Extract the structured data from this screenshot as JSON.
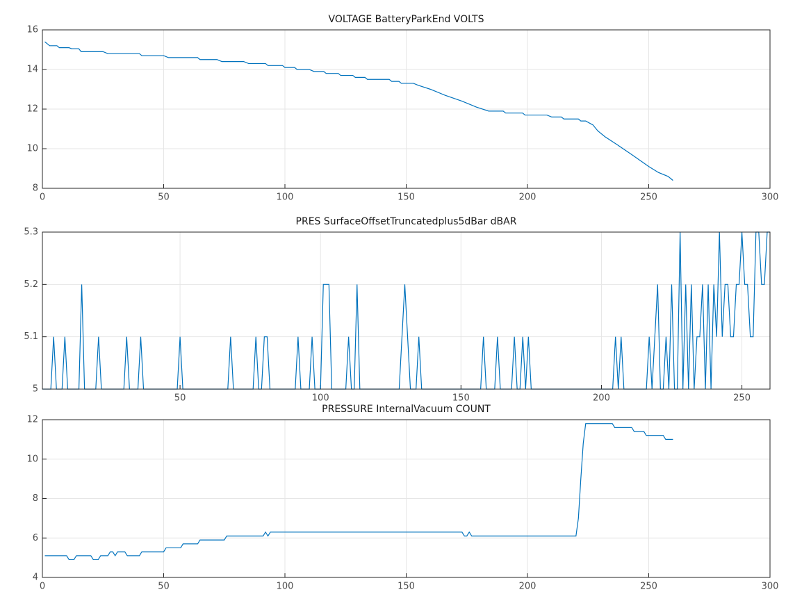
{
  "chart_data": [
    {
      "type": "line",
      "title": "VOLTAGE BatteryParkEnd VOLTS",
      "color": "#0072bd",
      "grid": true,
      "x": [
        1,
        2,
        3,
        6,
        7,
        11,
        12,
        15,
        16,
        25,
        27,
        40,
        41,
        50,
        52,
        64,
        65,
        72,
        74,
        83,
        85,
        92,
        93,
        99,
        100,
        104,
        105,
        110,
        112,
        116,
        117,
        122,
        123,
        128,
        129,
        133,
        134,
        143,
        144,
        147,
        148,
        153,
        155,
        160,
        166,
        173,
        179,
        184,
        190,
        191,
        198,
        199,
        208,
        210,
        214,
        215,
        221,
        222,
        224,
        227,
        229,
        232,
        237,
        243,
        250,
        254,
        258,
        260
      ],
      "values": [
        15.4,
        15.3,
        15.2,
        15.2,
        15.1,
        15.1,
        15.05,
        15.05,
        14.9,
        14.9,
        14.8,
        14.8,
        14.7,
        14.7,
        14.6,
        14.6,
        14.5,
        14.5,
        14.4,
        14.4,
        14.3,
        14.3,
        14.2,
        14.2,
        14.1,
        14.1,
        14.0,
        14.0,
        13.9,
        13.9,
        13.8,
        13.8,
        13.7,
        13.7,
        13.6,
        13.6,
        13.5,
        13.5,
        13.4,
        13.4,
        13.3,
        13.3,
        13.2,
        13.0,
        12.7,
        12.4,
        12.1,
        11.9,
        11.9,
        11.8,
        11.8,
        11.7,
        11.7,
        11.6,
        11.6,
        11.5,
        11.5,
        11.4,
        11.4,
        11.2,
        10.9,
        10.6,
        10.2,
        9.7,
        9.1,
        8.8,
        8.6,
        8.4
      ],
      "xlim": [
        0,
        300
      ],
      "xticks": [
        0,
        50,
        100,
        150,
        200,
        250,
        300
      ],
      "ylim": [
        8,
        16
      ],
      "yticks": [
        8,
        10,
        12,
        14,
        16
      ]
    },
    {
      "type": "line",
      "title": "PRES SurfaceOffsetTruncatedplus5dBar dBAR",
      "color": "#0072bd",
      "grid": true,
      "x": [
        1,
        4,
        5,
        6,
        8,
        9,
        10,
        14,
        15,
        16,
        20,
        21,
        22,
        30,
        31,
        32,
        35,
        36,
        37,
        49,
        50,
        51,
        67,
        68,
        69,
        76,
        77,
        78,
        79,
        80,
        81,
        82,
        91,
        92,
        93,
        96,
        97,
        98,
        100,
        101,
        103,
        104,
        109,
        110,
        111,
        112,
        113,
        114,
        128,
        130,
        132,
        134,
        135,
        136,
        157,
        158,
        159,
        162,
        163,
        164,
        168,
        169,
        170,
        171,
        172,
        173,
        174,
        175,
        204,
        205,
        206,
        207,
        208,
        216,
        217,
        218,
        220,
        221,
        222,
        223,
        224,
        225,
        226,
        227,
        228,
        229,
        230,
        231,
        232,
        233,
        234,
        235,
        236,
        237,
        238,
        239,
        240,
        241,
        242,
        243,
        244,
        245,
        246,
        247,
        248,
        249,
        250,
        251,
        252,
        253,
        254,
        255,
        256,
        257,
        258,
        259,
        260
      ],
      "values": [
        5,
        5,
        5.1,
        5,
        5,
        5.1,
        5,
        5,
        5.2,
        5,
        5,
        5.1,
        5,
        5,
        5.1,
        5,
        5,
        5.1,
        5,
        5,
        5.1,
        5,
        5,
        5.1,
        5,
        5,
        5.1,
        5,
        5,
        5.1,
        5.1,
        5,
        5,
        5.1,
        5,
        5,
        5.1,
        5,
        5,
        5.2,
        5.2,
        5,
        5,
        5.1,
        5,
        5,
        5.2,
        5,
        5,
        5.2,
        5,
        5,
        5.1,
        5,
        5,
        5.1,
        5,
        5,
        5.1,
        5,
        5,
        5.1,
        5,
        5,
        5.1,
        5,
        5.1,
        5,
        5,
        5.1,
        5,
        5.1,
        5,
        5,
        5.1,
        5,
        5.2,
        5,
        5,
        5.1,
        5,
        5.2,
        5,
        5,
        5.3,
        5,
        5.2,
        5,
        5.2,
        5,
        5.1,
        5.1,
        5.2,
        5,
        5.2,
        5,
        5.2,
        5.1,
        5.3,
        5.1,
        5.2,
        5.2,
        5.1,
        5.1,
        5.2,
        5.2,
        5.3,
        5.2,
        5.2,
        5.1,
        5.1,
        5.3,
        5.3,
        5.2,
        5.2,
        5.3,
        5.3
      ],
      "xlim": [
        1,
        260
      ],
      "xticks": [
        50,
        100,
        150,
        200,
        250
      ],
      "ylim": [
        5,
        5.3
      ],
      "yticks": [
        5,
        5.1,
        5.2,
        5.3
      ]
    },
    {
      "type": "line",
      "title": "PRESSURE InternalVacuum COUNT",
      "color": "#0072bd",
      "grid": true,
      "x": [
        1,
        10,
        11,
        13,
        14,
        20,
        21,
        23,
        24,
        27,
        28,
        29,
        30,
        31,
        34,
        35,
        40,
        41,
        50,
        51,
        57,
        58,
        64,
        65,
        75,
        76,
        91,
        92,
        93,
        94,
        173,
        174,
        175,
        176,
        177,
        220,
        221,
        222,
        223,
        224,
        235,
        236,
        243,
        244,
        248,
        249,
        256,
        257,
        260
      ],
      "values": [
        5.1,
        5.1,
        4.9,
        4.9,
        5.1,
        5.1,
        4.9,
        4.9,
        5.1,
        5.1,
        5.3,
        5.3,
        5.1,
        5.3,
        5.3,
        5.1,
        5.1,
        5.3,
        5.3,
        5.5,
        5.5,
        5.7,
        5.7,
        5.9,
        5.9,
        6.1,
        6.1,
        6.3,
        6.1,
        6.3,
        6.3,
        6.1,
        6.1,
        6.3,
        6.1,
        6.1,
        7.0,
        9.0,
        10.8,
        11.8,
        11.8,
        11.6,
        11.6,
        11.4,
        11.4,
        11.2,
        11.2,
        11.0,
        11.0
      ],
      "xlim": [
        0,
        300
      ],
      "xticks": [
        0,
        50,
        100,
        150,
        200,
        250,
        300
      ],
      "ylim": [
        4,
        12
      ],
      "yticks": [
        4,
        6,
        8,
        10,
        12
      ]
    }
  ]
}
